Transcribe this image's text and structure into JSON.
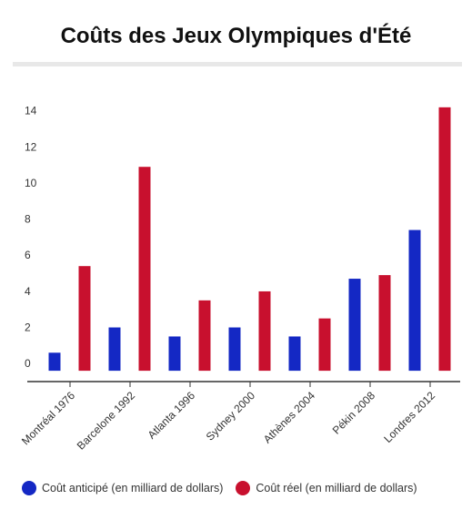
{
  "chart_data": {
    "type": "bar",
    "title": "Coûts des Jeux Olympiques d'Été",
    "categories": [
      "Montréal 1976",
      "Barcelone 1992",
      "Atlanta 1996",
      "Sydney 2000",
      "Athènes 2004",
      "Pékin 2008",
      "Londres 2012"
    ],
    "series": [
      {
        "name": "Coût anticipé (en milliard de dollars)",
        "color": "#1428c4",
        "values": [
          1.0,
          2.4,
          1.9,
          2.4,
          1.9,
          5.1,
          7.8
        ]
      },
      {
        "name": "Coût réel (en milliard de dollars)",
        "color": "#c8102e",
        "values": [
          5.8,
          11.3,
          3.9,
          4.4,
          2.9,
          5.3,
          14.6
        ]
      }
    ],
    "yticks": [
      0,
      2,
      4,
      6,
      8,
      10,
      12,
      14
    ],
    "ylim": [
      -0.6,
      15.5
    ],
    "grid": false,
    "legend": "bottom-left",
    "xlabel": "",
    "ylabel": ""
  }
}
